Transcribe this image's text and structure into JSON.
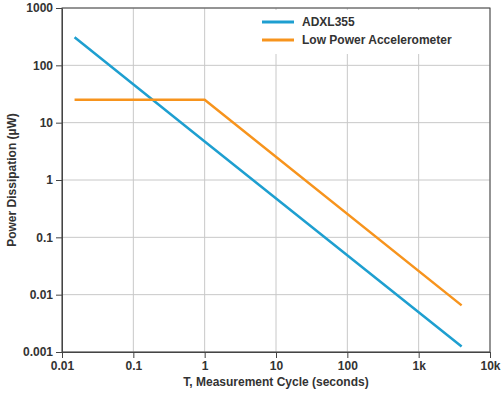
{
  "chart_data": {
    "type": "line",
    "x_label": "T, Measurement Cycle (seconds)",
    "y_label": "Power Dissipation (µW)",
    "x": [
      0.015,
      1,
      4000
    ],
    "series": [
      {
        "name": "ADXL355",
        "color": "#1e9fd0",
        "values": [
          310,
          4.7,
          0.00125
        ]
      },
      {
        "name": "Low Power Accelerometer",
        "color": "#f7941d",
        "values": [
          25,
          25,
          0.0065
        ]
      }
    ],
    "xlim": [
      0.01,
      10000
    ],
    "ylim": [
      0.001,
      1000
    ],
    "xticks": [
      0.01,
      0.1,
      1,
      10,
      100,
      {
        "value": 1000,
        "label": "1k"
      },
      {
        "value": 10000,
        "label": "10k"
      }
    ],
    "yticks": [
      0.001,
      0.01,
      0.1,
      1,
      10,
      100,
      1000
    ],
    "log": true,
    "grid": true,
    "legend": "upper right"
  }
}
